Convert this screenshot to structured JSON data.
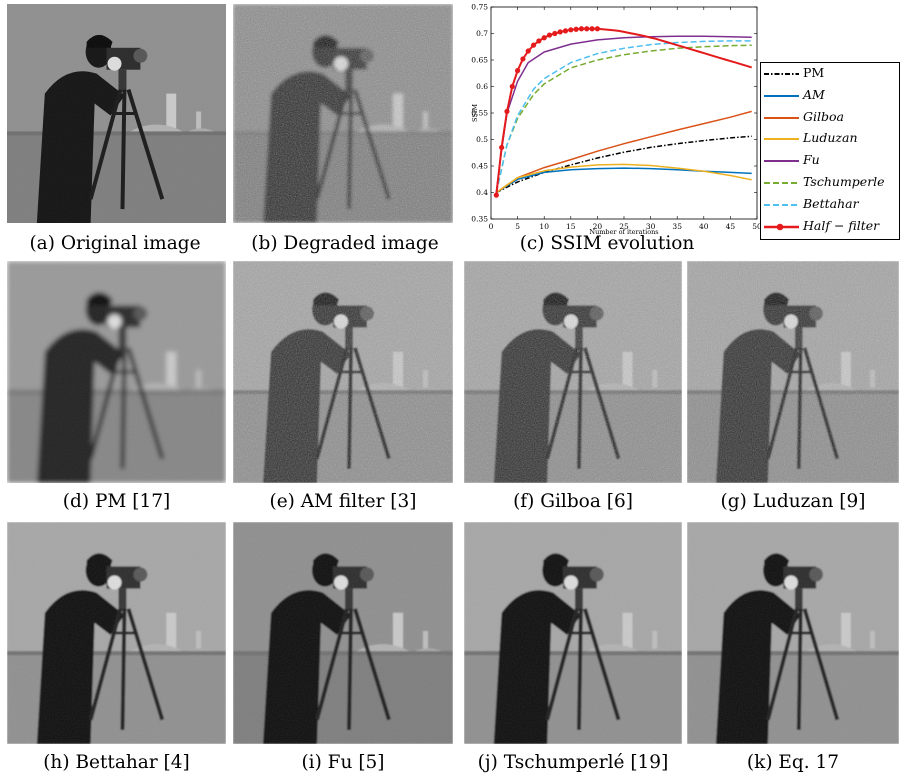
{
  "panels": {
    "a": {
      "caption": "(a) Original image",
      "variant": "clean"
    },
    "b": {
      "caption": "(b) Degraded image",
      "variant": "noisy"
    },
    "c": {
      "caption": "(c) SSIM evolution"
    },
    "d": {
      "caption": "(d) PM [17]",
      "variant": "blurred"
    },
    "e": {
      "caption": "(e) AM filter [3]",
      "variant": "noisy-light"
    },
    "f": {
      "caption": "(f) Gilboa [6]",
      "variant": "noisy-light"
    },
    "g": {
      "caption": "(g) Luduzan [9]",
      "variant": "noisy-light"
    },
    "h": {
      "caption": "(h) Bettahar [4]",
      "variant": "smooth"
    },
    "i": {
      "caption": "(i) Fu [5]",
      "variant": "smooth-dark"
    },
    "j": {
      "caption": "(j) Tschumperlé [19]",
      "variant": "smooth"
    },
    "k": {
      "caption": "(k) Eq. 17",
      "variant": "smooth"
    }
  },
  "chart_data": {
    "type": "line",
    "title": "",
    "xlabel": "Number of iterations",
    "ylabel": "SSIM",
    "xlim": [
      0,
      50
    ],
    "ylim": [
      0.35,
      0.75
    ],
    "xticks": [
      "0",
      "5",
      "10",
      "15",
      "20",
      "25",
      "30",
      "35",
      "40",
      "45",
      "50"
    ],
    "yticks": [
      "0.35",
      "0.4",
      "0.45",
      "0.5",
      "0.55",
      "0.6",
      "0.65",
      "0.7",
      "0.75"
    ],
    "legend_position": "right",
    "series": [
      {
        "name": "PM",
        "color": "#000000",
        "style": "dashdot",
        "x": [
          1,
          5,
          10,
          15,
          20,
          25,
          30,
          35,
          40,
          45,
          49
        ],
        "y": [
          0.4,
          0.42,
          0.438,
          0.452,
          0.465,
          0.476,
          0.485,
          0.492,
          0.498,
          0.503,
          0.506
        ]
      },
      {
        "name": "AM",
        "color": "#0072BD",
        "style": "solid",
        "x": [
          1,
          5,
          10,
          15,
          20,
          25,
          30,
          35,
          40,
          45,
          49
        ],
        "y": [
          0.4,
          0.425,
          0.438,
          0.443,
          0.445,
          0.446,
          0.445,
          0.443,
          0.44,
          0.438,
          0.436
        ]
      },
      {
        "name": "Gilboa",
        "color": "#D95319",
        "style": "solid",
        "x": [
          1,
          5,
          10,
          15,
          20,
          25,
          30,
          35,
          40,
          45,
          49
        ],
        "y": [
          0.4,
          0.428,
          0.447,
          0.462,
          0.478,
          0.492,
          0.505,
          0.518,
          0.53,
          0.542,
          0.553
        ]
      },
      {
        "name": "Luduzan",
        "color": "#EDB120",
        "style": "solid",
        "x": [
          1,
          5,
          10,
          15,
          20,
          25,
          30,
          35,
          40,
          45,
          49
        ],
        "y": [
          0.4,
          0.428,
          0.441,
          0.448,
          0.452,
          0.453,
          0.451,
          0.446,
          0.44,
          0.432,
          0.424
        ]
      },
      {
        "name": "Fu",
        "color": "#7E2F8E",
        "style": "solid",
        "x": [
          1,
          2,
          3,
          5,
          7,
          10,
          15,
          20,
          25,
          30,
          35,
          40,
          45,
          49
        ],
        "y": [
          0.4,
          0.48,
          0.55,
          0.61,
          0.645,
          0.665,
          0.68,
          0.688,
          0.692,
          0.694,
          0.695,
          0.695,
          0.694,
          0.693
        ]
      },
      {
        "name": "Tschumperle",
        "color": "#77AC30",
        "style": "dashed",
        "x": [
          1,
          3,
          5,
          8,
          10,
          15,
          20,
          25,
          30,
          35,
          40,
          45,
          49
        ],
        "y": [
          0.4,
          0.49,
          0.54,
          0.585,
          0.605,
          0.635,
          0.65,
          0.66,
          0.667,
          0.672,
          0.675,
          0.677,
          0.678
        ]
      },
      {
        "name": "Bettahar",
        "color": "#4DBEEE",
        "style": "dashed",
        "x": [
          1,
          3,
          5,
          8,
          10,
          15,
          20,
          25,
          30,
          35,
          40,
          45,
          49
        ],
        "y": [
          0.4,
          0.49,
          0.545,
          0.595,
          0.615,
          0.645,
          0.662,
          0.672,
          0.679,
          0.683,
          0.685,
          0.686,
          0.686
        ]
      },
      {
        "name": "Half-filter",
        "color": "#E41A1C",
        "style": "solid-markers",
        "x": [
          1,
          2,
          3,
          4,
          5,
          6,
          7,
          8,
          9,
          10,
          11,
          12,
          13,
          14,
          15,
          16,
          17,
          18,
          19,
          20,
          21,
          22,
          23,
          24,
          25,
          26,
          27,
          28,
          29,
          30,
          31,
          32,
          33,
          34,
          35,
          36,
          37,
          38,
          39,
          40,
          41,
          42,
          43,
          44,
          45,
          46,
          47,
          48,
          49
        ],
        "y": [
          0.395,
          0.485,
          0.553,
          0.6,
          0.63,
          0.652,
          0.667,
          0.678,
          0.686,
          0.692,
          0.697,
          0.7,
          0.703,
          0.705,
          0.707,
          0.708,
          0.709,
          0.709,
          0.709,
          0.709,
          0.708,
          0.707,
          0.706,
          0.705,
          0.703,
          0.701,
          0.699,
          0.697,
          0.695,
          0.692,
          0.69,
          0.687,
          0.684,
          0.681,
          0.678,
          0.675,
          0.672,
          0.669,
          0.666,
          0.663,
          0.66,
          0.657,
          0.654,
          0.651,
          0.648,
          0.645,
          0.642,
          0.639,
          0.636
        ]
      }
    ]
  },
  "legend": {
    "labels": [
      "PM",
      "AM",
      "Gilboa",
      "Luduzan",
      "Fu",
      "Tschumperle",
      "Bettahar",
      "Half − filter"
    ]
  }
}
